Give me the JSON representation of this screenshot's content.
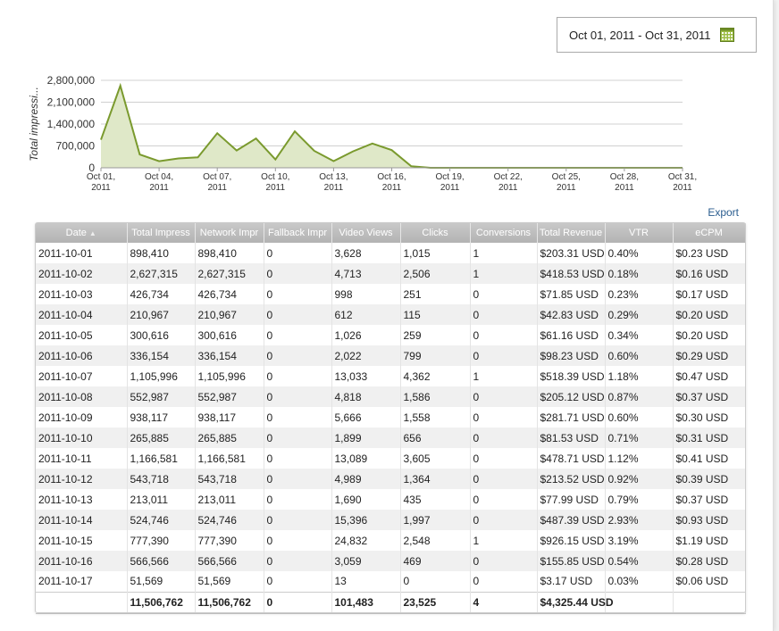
{
  "date_range": {
    "label": "Oct 01, 2011 - Oct 31, 2011"
  },
  "export_label": "Export",
  "chart_data": {
    "type": "area",
    "ylabel": "Total impressi...",
    "xlabel": "",
    "ylim": [
      0,
      2800000
    ],
    "y_ticks": [
      "2,800,000",
      "2,100,000",
      "1,400,000",
      "700,000",
      "0"
    ],
    "x_ticks": [
      [
        "Oct 01,",
        "2011"
      ],
      [
        "Oct 04,",
        "2011"
      ],
      [
        "Oct 07,",
        "2011"
      ],
      [
        "Oct 10,",
        "2011"
      ],
      [
        "Oct 13,",
        "2011"
      ],
      [
        "Oct 16,",
        "2011"
      ],
      [
        "Oct 19,",
        "2011"
      ],
      [
        "Oct 22,",
        "2011"
      ],
      [
        "Oct 25,",
        "2011"
      ],
      [
        "Oct 28,",
        "2011"
      ],
      [
        "Oct 31,",
        "2011"
      ]
    ],
    "x": [
      1,
      2,
      3,
      4,
      5,
      6,
      7,
      8,
      9,
      10,
      11,
      12,
      13,
      14,
      15,
      16,
      17,
      18,
      19,
      20,
      21,
      22,
      23,
      24,
      25,
      26,
      27,
      28,
      29,
      30,
      31
    ],
    "values": [
      898410,
      2627315,
      426734,
      210967,
      300616,
      336154,
      1105996,
      552987,
      938117,
      265885,
      1166581,
      543718,
      213011,
      524746,
      777390,
      566566,
      51569,
      0,
      0,
      0,
      0,
      0,
      0,
      0,
      0,
      0,
      0,
      0,
      0,
      0,
      0
    ],
    "color": "#7a9a2e",
    "fill": "#dfe8c8",
    "grid": true
  },
  "table": {
    "columns": [
      "Date",
      "Total Impress",
      "Network Impr",
      "Fallback Impr",
      "Video Views",
      "Clicks",
      "Conversions",
      "Total Revenue",
      "VTR",
      "eCPM"
    ],
    "rows": [
      [
        "2011-10-01",
        "898,410",
        "898,410",
        "0",
        "3,628",
        "1,015",
        "1",
        "$203.31 USD",
        "0.40%",
        "$0.23 USD"
      ],
      [
        "2011-10-02",
        "2,627,315",
        "2,627,315",
        "0",
        "4,713",
        "2,506",
        "1",
        "$418.53 USD",
        "0.18%",
        "$0.16 USD"
      ],
      [
        "2011-10-03",
        "426,734",
        "426,734",
        "0",
        "998",
        "251",
        "0",
        "$71.85 USD",
        "0.23%",
        "$0.17 USD"
      ],
      [
        "2011-10-04",
        "210,967",
        "210,967",
        "0",
        "612",
        "115",
        "0",
        "$42.83 USD",
        "0.29%",
        "$0.20 USD"
      ],
      [
        "2011-10-05",
        "300,616",
        "300,616",
        "0",
        "1,026",
        "259",
        "0",
        "$61.16 USD",
        "0.34%",
        "$0.20 USD"
      ],
      [
        "2011-10-06",
        "336,154",
        "336,154",
        "0",
        "2,022",
        "799",
        "0",
        "$98.23 USD",
        "0.60%",
        "$0.29 USD"
      ],
      [
        "2011-10-07",
        "1,105,996",
        "1,105,996",
        "0",
        "13,033",
        "4,362",
        "1",
        "$518.39 USD",
        "1.18%",
        "$0.47 USD"
      ],
      [
        "2011-10-08",
        "552,987",
        "552,987",
        "0",
        "4,818",
        "1,586",
        "0",
        "$205.12 USD",
        "0.87%",
        "$0.37 USD"
      ],
      [
        "2011-10-09",
        "938,117",
        "938,117",
        "0",
        "5,666",
        "1,558",
        "0",
        "$281.71 USD",
        "0.60%",
        "$0.30 USD"
      ],
      [
        "2011-10-10",
        "265,885",
        "265,885",
        "0",
        "1,899",
        "656",
        "0",
        "$81.53 USD",
        "0.71%",
        "$0.31 USD"
      ],
      [
        "2011-10-11",
        "1,166,581",
        "1,166,581",
        "0",
        "13,089",
        "3,605",
        "0",
        "$478.71 USD",
        "1.12%",
        "$0.41 USD"
      ],
      [
        "2011-10-12",
        "543,718",
        "543,718",
        "0",
        "4,989",
        "1,364",
        "0",
        "$213.52 USD",
        "0.92%",
        "$0.39 USD"
      ],
      [
        "2011-10-13",
        "213,011",
        "213,011",
        "0",
        "1,690",
        "435",
        "0",
        "$77.99 USD",
        "0.79%",
        "$0.37 USD"
      ],
      [
        "2011-10-14",
        "524,746",
        "524,746",
        "0",
        "15,396",
        "1,997",
        "0",
        "$487.39 USD",
        "2.93%",
        "$0.93 USD"
      ],
      [
        "2011-10-15",
        "777,390",
        "777,390",
        "0",
        "24,832",
        "2,548",
        "1",
        "$926.15 USD",
        "3.19%",
        "$1.19 USD"
      ],
      [
        "2011-10-16",
        "566,566",
        "566,566",
        "0",
        "3,059",
        "469",
        "0",
        "$155.85 USD",
        "0.54%",
        "$0.28 USD"
      ],
      [
        "2011-10-17",
        "51,569",
        "51,569",
        "0",
        "13",
        "0",
        "0",
        "$3.17 USD",
        "0.03%",
        "$0.06 USD"
      ]
    ],
    "totals": [
      "",
      "11,506,762",
      "11,506,762",
      "0",
      "101,483",
      "23,525",
      "4",
      "$4,325.44 USD",
      "",
      ""
    ]
  }
}
